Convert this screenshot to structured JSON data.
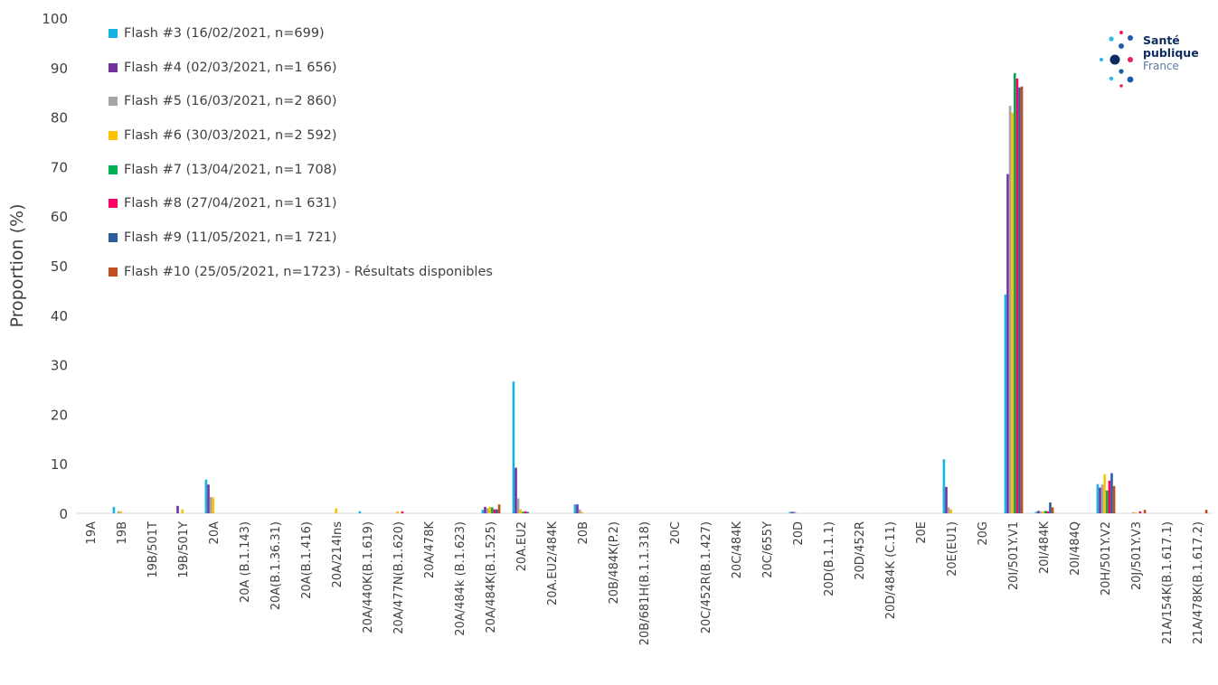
{
  "chart_data": {
    "type": "bar",
    "title": "",
    "xlabel": "",
    "ylabel": "Proportion (%)",
    "ylim": [
      0,
      100
    ],
    "yticks": [
      0,
      10,
      20,
      30,
      40,
      50,
      60,
      70,
      80,
      90,
      100
    ],
    "grid": false,
    "legend_position": "top-left",
    "categories": [
      "19A",
      "19B",
      "19B/501T",
      "19B/501Y",
      "20A",
      "20A (B.1.143)",
      "20A(B.1.36.31)",
      "20A(B.1.416)",
      "20A/214Ins",
      "20A/440K(B.1.619)",
      "20A/477N(B.1.620)",
      "20A/478K",
      "20A/484k (B.1.623)",
      "20A/484K(B.1.525)",
      "20A.EU2",
      "20A.EU2/484K",
      "20B",
      "20B/484K(P.2)",
      "20B/681H(B.1.1.318)",
      "20C",
      "20C/452R(B.1.427)",
      "20C/484K",
      "20C/655Y",
      "20D",
      "20D(B.1.1.1)",
      "20D/452R",
      "20D/484K (C.11)",
      "20E",
      "20E(EU1)",
      "20G",
      "20I/501Y.V1",
      "20I/484K",
      "20I/484Q",
      "20H/501Y.V2",
      "20J/501Y.V3",
      "21A/154K(B.1.617.1)",
      "21A/478K(B.1.617.2)"
    ],
    "series": [
      {
        "name": "Flash #3 (16/02/2021, n=699)",
        "color": "#17b2e6",
        "values": [
          0,
          1.3,
          0,
          0,
          6.8,
          0,
          0,
          0,
          0,
          0.4,
          0,
          0,
          0,
          0.7,
          26.6,
          0,
          1.8,
          0,
          0,
          0,
          0,
          0,
          0,
          0.3,
          0,
          0,
          0,
          0,
          10.9,
          0,
          44.2,
          0.3,
          0,
          5.9,
          0,
          0,
          0
        ]
      },
      {
        "name": "Flash #4 (02/03/2021, n=1 656)",
        "color": "#7030a0",
        "values": [
          0,
          0,
          0,
          1.5,
          5.8,
          0,
          0,
          0,
          0,
          0,
          0,
          0,
          0,
          1.3,
          9.2,
          0,
          1.8,
          0,
          0,
          0,
          0,
          0,
          0,
          0.3,
          0,
          0,
          0,
          0,
          5.3,
          0,
          68.5,
          0.5,
          0,
          5.2,
          0,
          0,
          0
        ]
      },
      {
        "name": "Flash #5 (16/03/2021, n=2 860)",
        "color": "#a5a5a5",
        "values": [
          0,
          0.4,
          0,
          0,
          3.3,
          0,
          0,
          0,
          0,
          0,
          0,
          0,
          0,
          1.0,
          3.0,
          0,
          0.8,
          0,
          0,
          0,
          0,
          0,
          0,
          0.3,
          0,
          0,
          0,
          0,
          1.2,
          0,
          82.3,
          0.4,
          0,
          5.8,
          0.2,
          0,
          0
        ]
      },
      {
        "name": "Flash #6 (30/03/2021, n=2 592)",
        "color": "#ffc000",
        "values": [
          0,
          0.4,
          0,
          0.8,
          3.2,
          0,
          0,
          0,
          1.0,
          0,
          0.4,
          0,
          0,
          1.3,
          0.8,
          0,
          0.3,
          0,
          0,
          0,
          0,
          0,
          0,
          0,
          0,
          0,
          0,
          0,
          0.8,
          0,
          80.9,
          0.4,
          0,
          7.9,
          0.2,
          0,
          0
        ]
      },
      {
        "name": "Flash #7 (13/04/2021, n=1 708)",
        "color": "#00b050",
        "values": [
          0,
          0,
          0,
          0,
          0,
          0,
          0,
          0,
          0,
          0,
          0,
          0,
          0,
          1.2,
          0.3,
          0,
          0,
          0,
          0,
          0,
          0,
          0,
          0,
          0,
          0,
          0,
          0,
          0,
          0,
          0,
          88.9,
          0.5,
          0,
          4.6,
          0,
          0,
          0
        ]
      },
      {
        "name": "Flash #8 (27/04/2021, n=1 631)",
        "color": "#ff0066",
        "values": [
          0,
          0,
          0,
          0,
          0,
          0,
          0,
          0,
          0,
          0,
          0.4,
          0,
          0,
          0.8,
          0.4,
          0,
          0,
          0,
          0,
          0,
          0,
          0,
          0,
          0,
          0,
          0,
          0,
          0,
          0,
          0,
          87.8,
          0.4,
          0,
          6.6,
          0.4,
          0,
          0
        ]
      },
      {
        "name": "Flash #9 (11/05/2021, n=1 721)",
        "color": "#2b5c9c",
        "values": [
          0,
          0,
          0,
          0,
          0,
          0,
          0,
          0,
          0,
          0,
          0,
          0,
          0,
          0.8,
          0.3,
          0,
          0,
          0,
          0,
          0,
          0,
          0,
          0,
          0,
          0,
          0,
          0,
          0,
          0,
          0,
          86.0,
          2.2,
          0,
          8.1,
          0,
          0,
          0
        ]
      },
      {
        "name": "Flash #10 (25/05/2021, n=1723) - Résultats disponibles",
        "color": "#c0501b",
        "values": [
          0,
          0,
          0,
          0,
          0,
          0,
          0,
          0,
          0,
          0,
          0,
          0,
          0,
          1.8,
          0,
          0,
          0,
          0,
          0,
          0,
          0,
          0,
          0,
          0,
          0,
          0,
          0,
          0,
          0,
          0,
          86.2,
          1.2,
          0,
          5.5,
          0.7,
          0,
          0.7
        ]
      }
    ]
  },
  "logo": {
    "line1": "Santé",
    "line2": "publique",
    "line3": "France"
  }
}
